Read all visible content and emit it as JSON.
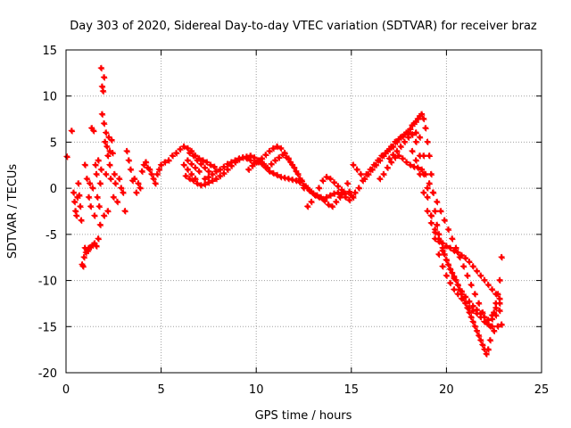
{
  "chart_data": {
    "type": "scatter",
    "title": "Day 303 of 2020, Sidereal Day-to-day VTEC variation (SDTVAR) for receiver braz",
    "xlabel": "GPS time / hours",
    "ylabel": "SDTVAR / TECUs",
    "xlim": [
      0,
      25
    ],
    "ylim": [
      -20,
      15
    ],
    "xticks": [
      0,
      5,
      10,
      15,
      20,
      25
    ],
    "yticks": [
      -20,
      -15,
      -10,
      -5,
      0,
      5,
      10,
      15
    ],
    "grid": true,
    "marker": "+",
    "colors": {
      "series": "#ff0000",
      "grid": "#a0a0a0",
      "axis": "#000000"
    },
    "series": [
      {
        "name": "SDTVAR",
        "x": [
          0.05,
          0.3,
          0.4,
          0.45,
          0.5,
          0.55,
          0.6,
          0.65,
          0.7,
          0.75,
          0.8,
          0.85,
          0.9,
          0.95,
          1.0,
          1.0,
          1.05,
          1.1,
          1.1,
          1.15,
          1.2,
          1.2,
          1.25,
          1.3,
          1.3,
          1.35,
          1.4,
          1.4,
          1.45,
          1.5,
          1.5,
          1.55,
          1.6,
          1.6,
          1.65,
          1.7,
          1.7,
          1.75,
          1.8,
          1.8,
          1.85,
          1.85,
          1.9,
          1.9,
          1.95,
          2.0,
          2.0,
          2.0,
          2.05,
          2.1,
          2.1,
          2.15,
          2.2,
          2.2,
          2.25,
          2.3,
          2.3,
          2.35,
          2.4,
          2.45,
          2.5,
          2.55,
          2.6,
          2.7,
          2.8,
          2.9,
          3.0,
          3.1,
          3.2,
          3.3,
          3.4,
          3.5,
          3.6,
          3.7,
          3.8,
          3.9,
          4.0,
          4.1,
          4.2,
          4.3,
          4.4,
          4.5,
          4.6,
          4.7,
          4.8,
          4.9,
          5.0,
          5.2,
          5.4,
          5.6,
          5.8,
          6.0,
          6.2,
          6.4,
          6.6,
          6.8,
          7.0,
          7.2,
          7.4,
          7.6,
          7.8,
          6.5,
          6.7,
          6.9,
          7.1,
          7.3,
          7.5,
          6.4,
          6.6,
          6.8,
          7.0,
          6.2,
          6.4,
          6.6,
          6.8,
          6.3,
          6.5,
          6.7,
          6.9,
          7.1,
          7.3,
          7.5,
          7.7,
          7.9,
          8.1,
          8.3,
          8.5,
          8.7,
          8.9,
          9.1,
          9.3,
          9.5,
          9.7,
          9.9,
          10.1,
          10.3,
          10.5,
          10.7,
          10.9,
          11.1,
          11.3,
          11.5,
          11.7,
          11.9,
          12.1,
          12.3,
          12.5,
          12.7,
          12.9,
          13.1,
          13.3,
          13.5,
          13.7,
          13.9,
          14.1,
          14.3,
          14.5,
          14.7,
          14.9,
          15.1,
          7.3,
          7.5,
          7.7,
          7.9,
          8.1,
          8.3,
          8.5,
          8.7,
          8.9,
          9.1,
          9.3,
          9.5,
          9.7,
          9.9,
          10.1,
          10.3,
          10.5,
          10.7,
          10.9,
          11.1,
          11.3,
          11.5,
          11.7,
          11.9,
          12.1,
          12.3,
          12.5,
          9.6,
          9.8,
          10.0,
          10.2,
          10.4,
          10.6,
          10.8,
          11.0,
          11.2,
          11.4,
          11.6,
          11.8,
          12.0,
          12.2,
          12.4,
          12.6,
          12.8,
          13.0,
          13.2,
          13.4,
          13.6,
          13.8,
          14.0,
          14.2,
          14.4,
          14.6,
          14.8,
          12.7,
          12.9,
          13.1,
          13.3,
          13.5,
          13.7,
          13.9,
          14.1,
          14.3,
          14.5,
          14.7,
          14.9,
          15.1,
          15.3,
          15.5,
          15.7,
          15.9,
          16.1,
          16.3,
          16.5,
          16.7,
          16.9,
          17.1,
          17.3,
          17.5,
          17.7,
          17.9,
          18.1,
          18.2,
          18.3,
          18.4,
          18.5,
          18.6,
          18.7,
          18.8,
          18.9,
          19.0,
          19.1,
          19.2,
          19.3,
          19.4,
          19.5,
          19.6,
          19.7,
          19.8,
          19.9,
          20.0,
          20.1,
          20.2,
          20.3,
          20.4,
          20.5,
          20.6,
          20.7,
          20.8,
          20.9,
          21.0,
          21.1,
          21.2,
          21.3,
          21.4,
          21.5,
          21.6,
          21.7,
          21.8,
          21.9,
          22.0,
          22.1,
          22.2,
          22.3,
          22.4,
          22.5,
          22.6,
          22.7,
          22.8,
          22.9,
          15.0,
          15.2,
          15.4,
          15.6,
          15.8,
          16.0,
          16.2,
          16.4,
          16.6,
          16.8,
          17.0,
          17.2,
          17.4,
          17.6,
          17.8,
          18.0,
          18.2,
          18.4,
          18.6,
          18.8,
          19.0,
          19.2,
          19.4,
          19.6,
          19.8,
          20.0,
          20.2,
          20.4,
          20.6,
          20.8,
          21.0,
          21.2,
          21.4,
          21.6,
          21.8,
          22.0,
          22.2,
          22.4,
          22.6,
          22.8,
          17.0,
          17.2,
          17.4,
          17.6,
          17.8,
          18.0,
          18.2,
          18.4,
          18.6,
          18.8,
          19.0,
          19.2,
          19.4,
          19.6,
          19.8,
          20.0,
          20.2,
          20.4,
          20.6,
          20.8,
          21.0,
          21.2,
          21.4,
          21.6,
          21.8,
          22.0,
          22.2,
          22.4,
          22.6,
          22.8,
          16.5,
          16.7,
          16.9,
          17.1,
          17.3,
          17.5,
          17.7,
          17.9,
          18.1,
          18.3,
          18.5,
          18.7,
          18.9,
          19.1,
          19.3,
          19.5,
          19.7,
          19.9,
          20.1,
          20.3,
          20.5,
          20.7,
          20.9,
          21.1,
          21.3,
          21.5,
          21.7,
          21.9,
          22.1,
          22.3,
          22.5,
          22.7,
          22.9,
          18.2,
          18.4,
          18.6,
          18.8,
          19.0,
          19.2,
          19.4,
          19.6,
          19.8,
          20.0,
          20.2,
          20.4,
          20.6,
          20.8,
          21.0,
          21.2,
          21.4,
          21.6,
          21.8,
          22.0,
          22.2,
          22.4,
          22.6,
          22.8
        ],
        "y": [
          3.4,
          6.2,
          -0.5,
          -1.5,
          -2.5,
          -3.0,
          -1.0,
          0.5,
          -0.8,
          -2.0,
          -3.5,
          -8.3,
          -8.5,
          -7.5,
          -6.5,
          2.5,
          -7.0,
          -6.8,
          1.0,
          -6.8,
          -6.5,
          -1.0,
          0.5,
          -6.4,
          -2.0,
          6.5,
          -6.2,
          0.0,
          6.2,
          -6.0,
          -3.0,
          2.5,
          -6.3,
          1.5,
          -1.0,
          -5.5,
          3.0,
          -2.0,
          -4.0,
          0.5,
          13.0,
          2.0,
          11.0,
          8.0,
          10.5,
          12.0,
          7.0,
          -3.0,
          5.0,
          6.0,
          1.5,
          4.5,
          3.5,
          -2.5,
          5.5,
          2.5,
          4.0,
          1.0,
          5.2,
          3.8,
          -1.0,
          1.5,
          0.5,
          -1.5,
          1.0,
          0.0,
          -0.5,
          -2.5,
          4.0,
          3.0,
          2.0,
          0.8,
          1.0,
          -0.5,
          0.5,
          0.0,
          1.8,
          2.5,
          2.8,
          2.2,
          2.0,
          1.5,
          1.0,
          0.5,
          1.5,
          2.0,
          2.5,
          2.8,
          3.0,
          3.5,
          3.8,
          4.2,
          4.5,
          4.3,
          4.0,
          3.5,
          3.2,
          3.0,
          2.8,
          2.5,
          2.3,
          3.8,
          3.5,
          3.0,
          2.6,
          2.2,
          1.8,
          3.0,
          2.6,
          2.2,
          1.8,
          2.5,
          2.0,
          1.5,
          1.0,
          1.3,
          1.0,
          0.8,
          0.5,
          0.3,
          0.4,
          0.6,
          0.8,
          1.0,
          1.3,
          1.6,
          2.0,
          2.4,
          2.8,
          3.1,
          3.3,
          3.4,
          3.5,
          3.3,
          3.0,
          2.6,
          2.2,
          1.8,
          1.6,
          1.4,
          1.2,
          1.1,
          1.0,
          0.9,
          0.8,
          0.6,
          0.3,
          0.0,
          -0.4,
          -0.8,
          -1.0,
          -1.2,
          -1.0,
          -0.8,
          -0.6,
          -0.5,
          -0.7,
          -1.0,
          -1.3,
          -1.0,
          1.0,
          1.2,
          1.5,
          1.8,
          2.0,
          2.3,
          2.6,
          2.8,
          3.0,
          3.2,
          3.3,
          3.2,
          3.0,
          2.7,
          2.8,
          3.2,
          3.6,
          4.0,
          4.3,
          4.5,
          4.3,
          3.8,
          3.2,
          2.5,
          1.8,
          1.0,
          0.0,
          2.0,
          2.4,
          2.8,
          3.0,
          2.6,
          2.2,
          2.6,
          3.0,
          3.3,
          3.6,
          3.3,
          2.8,
          2.2,
          1.5,
          0.8,
          0.2,
          -0.3,
          -0.6,
          -0.8,
          -1.0,
          -1.4,
          -1.8,
          -2.0,
          -1.5,
          -1.0,
          -0.5,
          0.5,
          -2.0,
          -1.5,
          -0.8,
          0.0,
          0.8,
          1.2,
          1.0,
          0.6,
          0.2,
          -0.2,
          -0.6,
          -0.4,
          2.5,
          2.0,
          1.5,
          1.0,
          1.5,
          2.0,
          2.5,
          3.0,
          3.5,
          4.0,
          4.5,
          5.0,
          5.3,
          5.6,
          6.0,
          6.4,
          6.8,
          7.0,
          7.2,
          7.5,
          7.8,
          8.0,
          7.5,
          6.5,
          5.0,
          3.5,
          1.5,
          -0.5,
          -2.5,
          -4.0,
          -5.0,
          -5.8,
          -6.5,
          -7.2,
          -7.8,
          -8.3,
          -8.8,
          -9.2,
          -9.6,
          -10.0,
          -10.5,
          -11.0,
          -11.5,
          -12.0,
          -12.5,
          -13.0,
          -13.5,
          -14.0,
          -14.5,
          -15.0,
          -15.5,
          -16.0,
          -16.5,
          -17.0,
          -17.5,
          -18.0,
          -17.5,
          -16.5,
          -15.0,
          -13.5,
          -12.5,
          -11.5,
          -10.0,
          -7.5,
          -0.8,
          -0.5,
          0.0,
          0.8,
          1.5,
          2.0,
          2.5,
          3.0,
          3.5,
          3.8,
          4.2,
          4.5,
          5.0,
          5.5,
          5.8,
          6.0,
          5.8,
          5.0,
          3.5,
          1.5,
          -1.0,
          -3.0,
          -4.5,
          -5.8,
          -6.8,
          -7.8,
          -8.8,
          -9.8,
          -10.5,
          -11.2,
          -11.8,
          -12.3,
          -12.8,
          -13.2,
          -13.6,
          -14.0,
          -14.3,
          -13.8,
          -13.0,
          -12.5,
          3.2,
          3.6,
          4.0,
          4.5,
          5.0,
          5.5,
          5.8,
          6.0,
          5.5,
          3.5,
          0.0,
          -3.0,
          -5.5,
          -7.2,
          -8.5,
          -9.5,
          -10.3,
          -11.0,
          -11.5,
          -12.0,
          -12.5,
          -13.0,
          -13.3,
          -13.6,
          -14.0,
          -14.5,
          -14.8,
          -14.2,
          -13.8,
          -13.3,
          1.0,
          1.5,
          2.2,
          2.8,
          3.3,
          3.5,
          3.2,
          2.8,
          2.5,
          2.3,
          2.2,
          2.0,
          1.5,
          0.5,
          -0.5,
          -1.5,
          -2.5,
          -3.5,
          -4.5,
          -5.5,
          -6.5,
          -7.5,
          -8.5,
          -9.5,
          -10.5,
          -11.5,
          -12.5,
          -13.5,
          -14.5,
          -15.0,
          -15.5,
          -15.0,
          -14.8,
          4.0,
          3.0,
          1.5,
          -0.5,
          -2.5,
          -3.8,
          -4.8,
          -5.5,
          -6.0,
          -6.3,
          -6.5,
          -6.8,
          -7.0,
          -7.3,
          -7.6,
          -8.0,
          -8.5,
          -9.0,
          -9.5,
          -10.0,
          -10.5,
          -11.0,
          -11.5,
          -12.0
        ]
      }
    ]
  }
}
